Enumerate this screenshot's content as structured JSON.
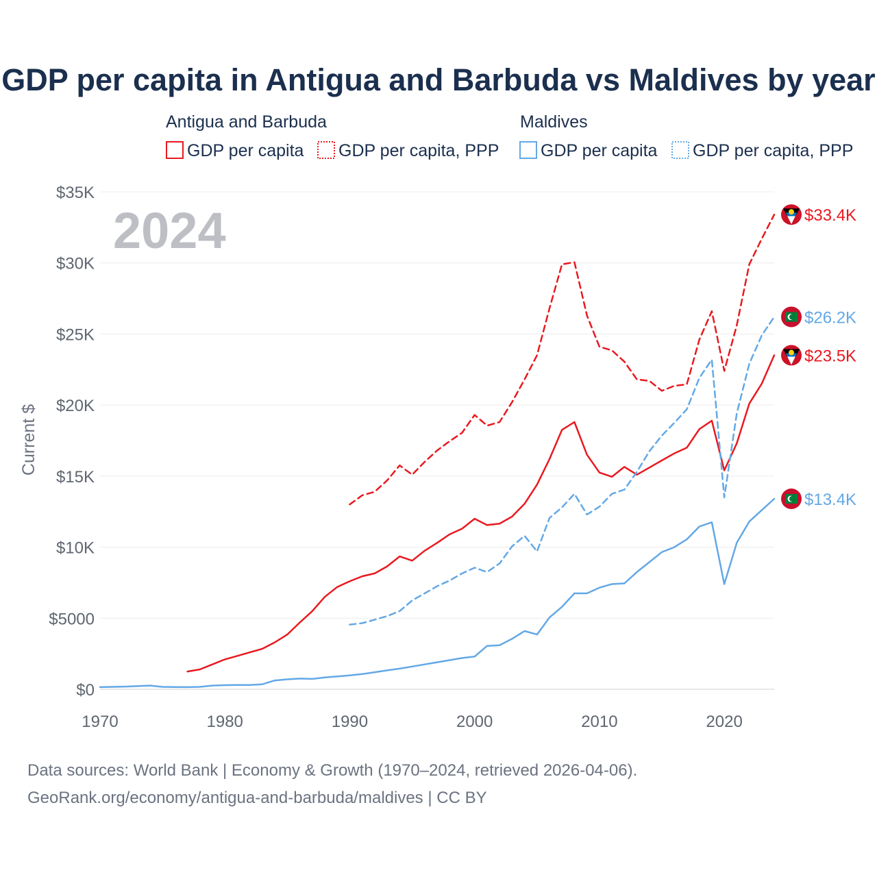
{
  "chart_data": {
    "type": "line",
    "title": "GDP per capita in Antigua and Barbuda vs Maldives by year",
    "ylabel": "Current $",
    "xlabel": "",
    "xlim": [
      1970,
      2024
    ],
    "ylim": [
      0,
      35000
    ],
    "x_ticks": [
      1970,
      1980,
      1990,
      2000,
      2010,
      2020
    ],
    "x_tick_labels": [
      "1970",
      "1980",
      "1990",
      "2000",
      "2010",
      "2020"
    ],
    "y_ticks": [
      0,
      5000,
      10000,
      15000,
      20000,
      25000,
      30000,
      35000
    ],
    "y_tick_labels": [
      "$0",
      "$5000",
      "$10K",
      "$15K",
      "$20K",
      "$25K",
      "$30K",
      "$35K"
    ],
    "year_label": "2024",
    "legend": {
      "groups": [
        {
          "name": "Antigua and Barbuda",
          "items": [
            "GDP per capita",
            "GDP per capita, PPP"
          ]
        },
        {
          "name": "Maldives",
          "items": [
            "GDP per capita",
            "GDP per capita, PPP"
          ]
        }
      ]
    },
    "series": [
      {
        "name": "Antigua and Barbuda — GDP per capita",
        "country": "Antigua and Barbuda",
        "color": "#e8191f",
        "dash": "solid",
        "end_label": "$23.5K",
        "x": [
          1977,
          1978,
          1979,
          1980,
          1981,
          1982,
          1983,
          1984,
          1985,
          1986,
          1987,
          1988,
          1989,
          1990,
          1991,
          1992,
          1993,
          1994,
          1995,
          1996,
          1997,
          1998,
          1999,
          2000,
          2001,
          2002,
          2003,
          2004,
          2005,
          2006,
          2007,
          2008,
          2009,
          2010,
          2011,
          2012,
          2013,
          2014,
          2015,
          2016,
          2017,
          2018,
          2019,
          2020,
          2021,
          2022,
          2023,
          2024
        ],
        "values": [
          1250,
          1400,
          1750,
          2100,
          2350,
          2600,
          2850,
          3300,
          3850,
          4700,
          5500,
          6500,
          7200,
          7600,
          7950,
          8150,
          8650,
          9350,
          9050,
          9750,
          10300,
          10900,
          11300,
          12000,
          11550,
          11650,
          12150,
          13050,
          14400,
          16200,
          18250,
          18800,
          16500,
          15250,
          14950,
          15650,
          15100,
          15600,
          16100,
          16600,
          17000,
          18300,
          18900,
          15400,
          17300,
          20100,
          21500,
          23500
        ]
      },
      {
        "name": "Antigua and Barbuda — GDP per capita, PPP",
        "country": "Antigua and Barbuda",
        "color": "#e8191f",
        "dash": "dashed",
        "end_label": "$33.4K",
        "x": [
          1990,
          1991,
          1992,
          1993,
          1994,
          1995,
          1996,
          1997,
          1998,
          1999,
          2000,
          2001,
          2002,
          2003,
          2004,
          2005,
          2006,
          2007,
          2008,
          2009,
          2010,
          2011,
          2012,
          2013,
          2014,
          2015,
          2016,
          2017,
          2018,
          2019,
          2020,
          2021,
          2022,
          2023,
          2024
        ],
        "values": [
          13000,
          13650,
          13900,
          14700,
          15750,
          15100,
          16000,
          16800,
          17450,
          18050,
          19300,
          18550,
          18800,
          20200,
          21800,
          23500,
          26800,
          29900,
          30050,
          26300,
          24100,
          23850,
          23050,
          21800,
          21700,
          21000,
          21350,
          21450,
          24600,
          26600,
          22400,
          25600,
          29900,
          31700,
          33400
        ]
      },
      {
        "name": "Maldives — GDP per capita",
        "country": "Maldives",
        "color": "#63a8e6",
        "dash": "solid",
        "end_label": "$13.4K",
        "x": [
          1970,
          1971,
          1972,
          1973,
          1974,
          1975,
          1976,
          1977,
          1978,
          1979,
          1980,
          1981,
          1982,
          1983,
          1984,
          1985,
          1986,
          1987,
          1988,
          1989,
          1990,
          1991,
          1992,
          1993,
          1994,
          1995,
          1996,
          1997,
          1998,
          1999,
          2000,
          2001,
          2002,
          2003,
          2004,
          2005,
          2006,
          2007,
          2008,
          2009,
          2010,
          2011,
          2012,
          2013,
          2014,
          2015,
          2016,
          2017,
          2018,
          2019,
          2020,
          2021,
          2022,
          2023,
          2024
        ],
        "values": [
          150,
          170,
          190,
          220,
          260,
          170,
          160,
          150,
          170,
          260,
          290,
          300,
          300,
          350,
          620,
          700,
          750,
          730,
          830,
          900,
          980,
          1070,
          1200,
          1330,
          1450,
          1600,
          1750,
          1900,
          2050,
          2200,
          2300,
          3050,
          3100,
          3550,
          4100,
          3850,
          5050,
          5800,
          6750,
          6750,
          7150,
          7400,
          7450,
          8250,
          8950,
          9650,
          10000,
          10550,
          11450,
          11750,
          7400,
          10300,
          11800,
          12600,
          13400
        ]
      },
      {
        "name": "Maldives — GDP per capita, PPP",
        "country": "Maldives",
        "color": "#63a8e6",
        "dash": "dashed",
        "end_label": "$26.2K",
        "x": [
          1990,
          1991,
          1992,
          1993,
          1994,
          1995,
          1996,
          1997,
          1998,
          1999,
          2000,
          2001,
          2002,
          2003,
          2004,
          2005,
          2006,
          2007,
          2008,
          2009,
          2010,
          2011,
          2012,
          2013,
          2014,
          2015,
          2016,
          2017,
          2018,
          2019,
          2020,
          2021,
          2022,
          2023,
          2024
        ],
        "values": [
          4550,
          4650,
          4900,
          5150,
          5500,
          6250,
          6750,
          7250,
          7650,
          8150,
          8550,
          8250,
          8850,
          10050,
          10800,
          9700,
          12050,
          12800,
          13750,
          12300,
          12850,
          13750,
          14050,
          15300,
          16750,
          17850,
          18750,
          19700,
          21900,
          23200,
          13500,
          19400,
          22900,
          24900,
          26200
        ]
      }
    ],
    "source_lines": [
      "Data sources: World Bank | Economy & Growth (1970–2024, retrieved 2026-04-06).",
      "GeoRank.org/economy/antigua-and-barbuda/maldives | CC BY"
    ]
  }
}
